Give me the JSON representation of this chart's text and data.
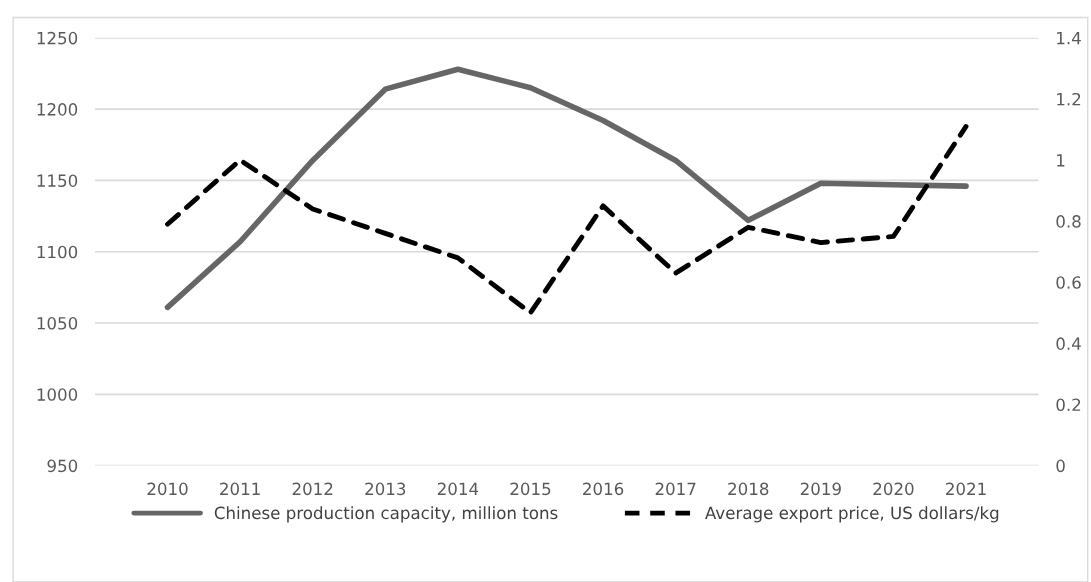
{
  "chart_data": {
    "type": "line",
    "categories": [
      "2010",
      "2011",
      "2012",
      "2013",
      "2014",
      "2015",
      "2016",
      "2017",
      "2018",
      "2019",
      "2020",
      "2021"
    ],
    "series": [
      {
        "name": "Chinese production capacity, million tons",
        "color": "#666666",
        "line_style": "solid",
        "values": [
          1061,
          1107,
          1164,
          1214,
          1228,
          1215,
          1192,
          1164,
          1122,
          1148,
          1147,
          1146
        ]
      },
      {
        "name": "Average export price, US dollars/kg",
        "color": "#000000",
        "line_style": "dashed",
        "axis": "y2",
        "values": [
          0.79,
          1.0,
          0.84,
          0.76,
          0.68,
          0.5,
          0.85,
          0.63,
          0.78,
          0.73,
          0.75,
          1.11
        ]
      }
    ],
    "ylim": [
      950,
      1250
    ],
    "yticks": [
      950,
      1000,
      1050,
      1100,
      1150,
      1200,
      1250
    ],
    "y2lim": [
      0,
      1.4
    ],
    "y2ticks": [
      0,
      {
        "value": 0.2,
        "label": "0.2"
      },
      {
        "value": 0.4,
        "label": "0.4"
      },
      {
        "value": 0.6,
        "label": "0.6"
      },
      {
        "value": 0.8,
        "label": "0.8"
      },
      1,
      {
        "value": 1.2,
        "label": "1.2"
      },
      {
        "value": 1.4,
        "label": "1.4"
      }
    ],
    "grid": "y",
    "legend": "bottom",
    "marker": "none"
  }
}
